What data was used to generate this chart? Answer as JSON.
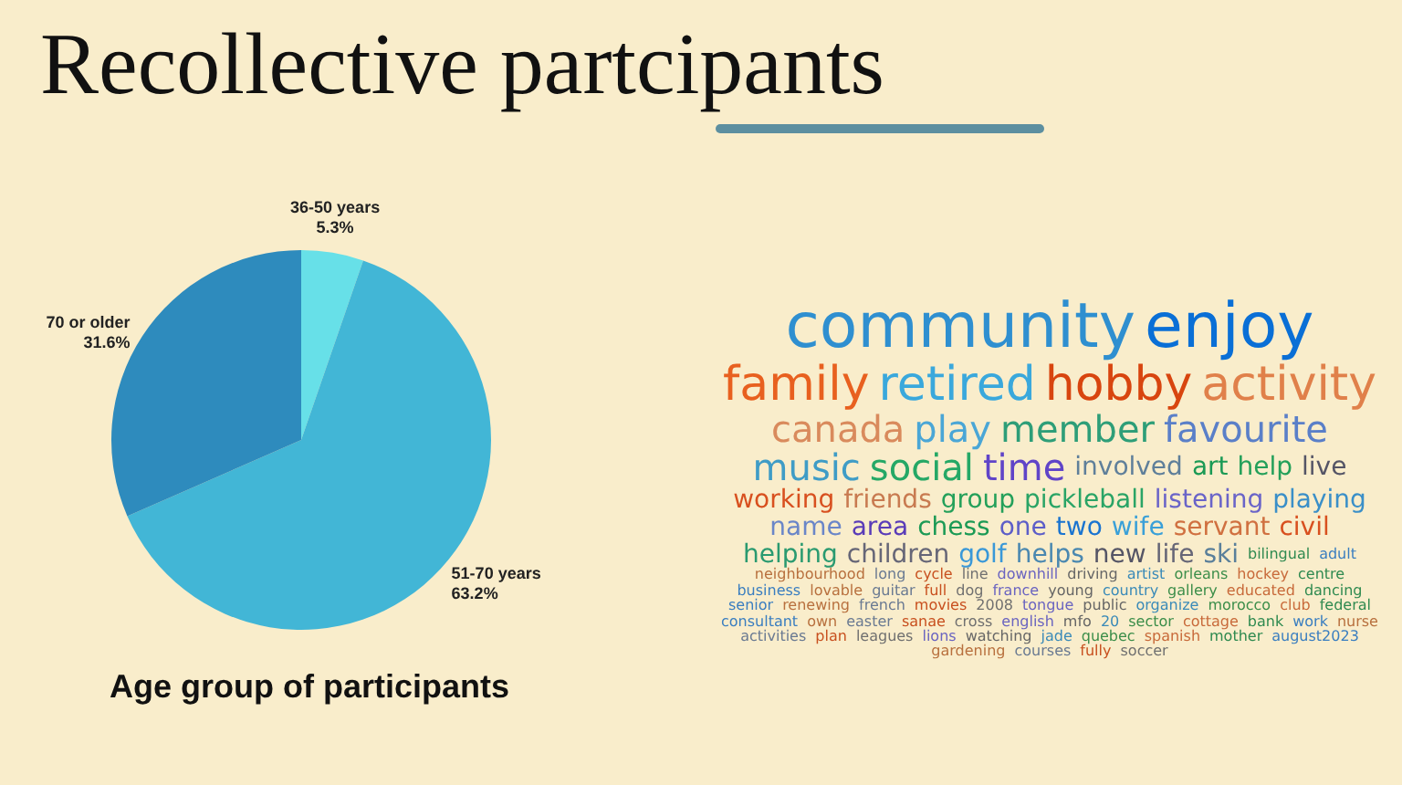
{
  "chart_data": [
    {
      "type": "pie",
      "title": "Recollective partcipants",
      "subtitle": "Age group of participants",
      "categories": [
        "36-50 years",
        "51-70 years",
        "70 or older"
      ],
      "values": [
        5.3,
        63.2,
        31.6
      ],
      "colors": [
        "#67e0e8",
        "#42b6d6",
        "#2e8bbd"
      ],
      "value_labels": [
        "5.3%",
        "63.2%",
        "31.6%"
      ]
    },
    {
      "type": "other",
      "annotations": [
        "community",
        "enjoy",
        "family",
        "retired",
        "hobby",
        "activity",
        "canada",
        "play",
        "member",
        "favourite",
        "music",
        "social",
        "time",
        "involved",
        "art",
        "help",
        "live",
        "working",
        "friends",
        "group",
        "pickleball",
        "listening",
        "playing",
        "name",
        "area",
        "chess",
        "one",
        "two",
        "wife",
        "servant",
        "civil",
        "helping",
        "children",
        "golf",
        "helps",
        "new",
        "life",
        "ski",
        "bilingual",
        "adult",
        "neighbourhood",
        "long",
        "cycle",
        "line",
        "downhill",
        "driving",
        "artist",
        "orleans",
        "hockey",
        "centre",
        "business",
        "lovable",
        "guitar",
        "full",
        "dog",
        "france",
        "young",
        "country",
        "gallery",
        "educated",
        "dancing",
        "senior",
        "renewing",
        "french",
        "movies",
        "2008",
        "tongue",
        "public",
        "organize",
        "morocco",
        "club",
        "federal",
        "consultant",
        "own",
        "easter",
        "sanae",
        "cross",
        "english",
        "mfo",
        "20",
        "sector",
        "cottage",
        "bank",
        "work",
        "nurse",
        "activities",
        "plan",
        "leagues",
        "lions",
        "watching",
        "jade",
        "quebec",
        "spanish",
        "mother",
        "august2023",
        "gardening",
        "courses",
        "fully",
        "soccer"
      ]
    }
  ]
}
